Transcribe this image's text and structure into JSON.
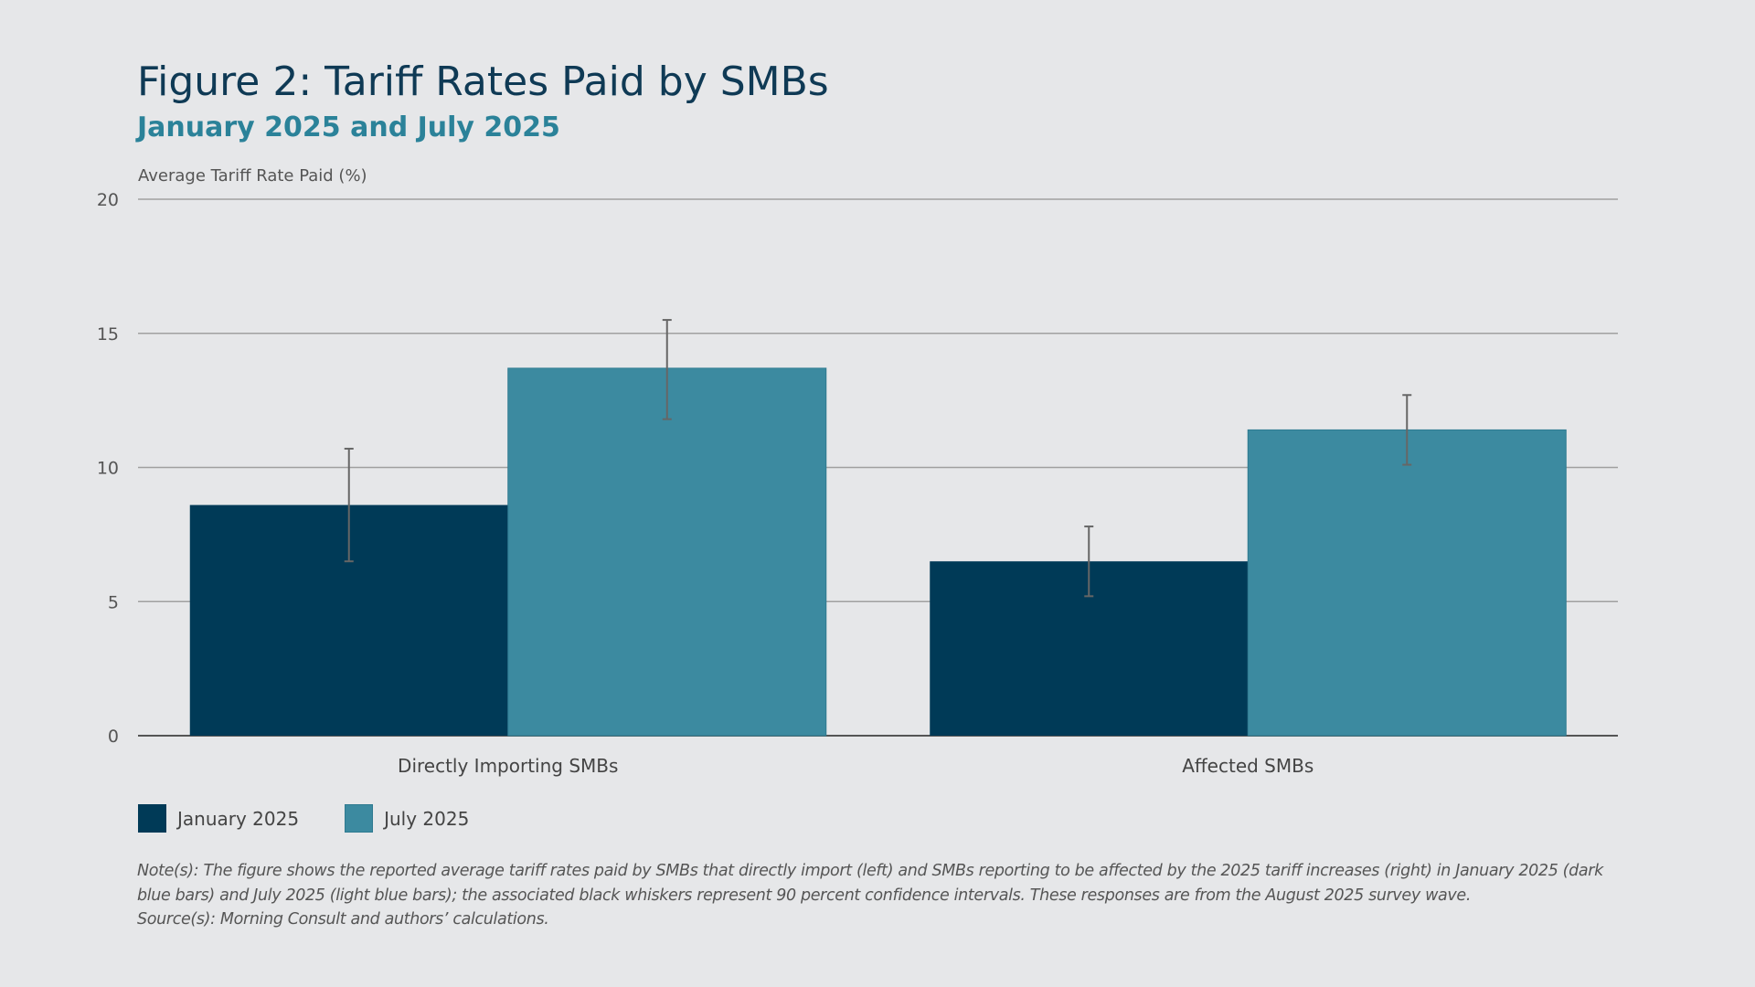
{
  "chart_data": {
    "type": "bar",
    "title": "Figure 2: Tariff Rates Paid by SMBs",
    "subtitle": "January 2025 and July 2025",
    "ylabel": "Average Tariff Rate Paid (%)",
    "xlabel": "",
    "ylim": [
      0,
      20
    ],
    "yticks": [
      0,
      5,
      10,
      15,
      20
    ],
    "grid": true,
    "legend_placement": "bottom-left",
    "categories": [
      "Directly Importing SMBs",
      "Affected SMBs"
    ],
    "series": [
      {
        "name": "January 2025",
        "color": "#003a57",
        "values": [
          8.6,
          6.5
        ],
        "ci_low": [
          6.5,
          5.2
        ],
        "ci_high": [
          10.7,
          7.8
        ]
      },
      {
        "name": "July 2025",
        "color": "#3c8aa0",
        "values": [
          13.7,
          11.4
        ],
        "ci_low": [
          11.8,
          10.1
        ],
        "ci_high": [
          15.5,
          12.7
        ]
      }
    ]
  },
  "notes": {
    "note": "Note(s): The figure shows the reported average tariff rates paid by SMBs that directly import (left) and SMBs reporting to be affected by the 2025 tariff increases (right) in January 2025 (dark blue bars) and July 2025 (light blue bars); the associated black whiskers represent 90 percent confidence intervals. These responses are from the August 2025 survey wave.",
    "source": "Source(s): Morning Consult and authors’ calculations."
  }
}
